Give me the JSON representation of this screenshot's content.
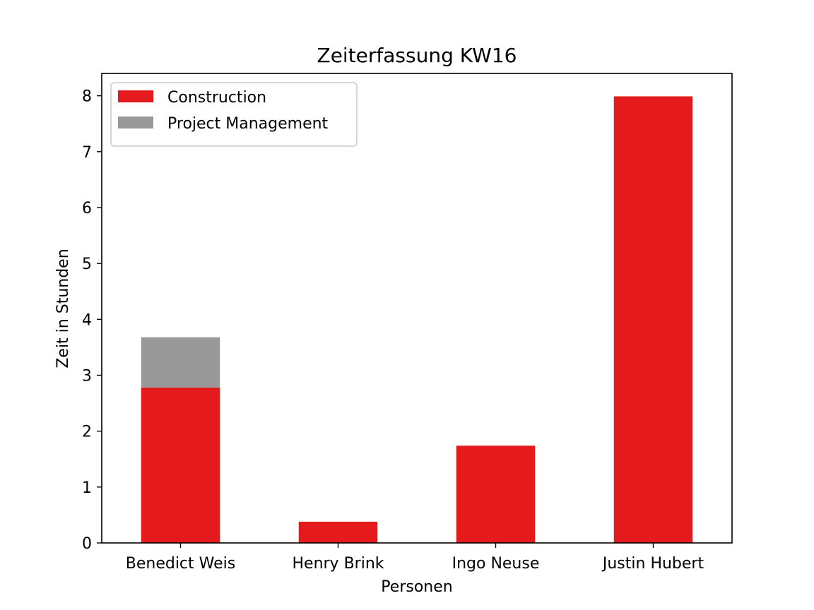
{
  "chart_data": {
    "type": "bar",
    "stacked": true,
    "title": "Zeiterfassung KW16",
    "xlabel": "Personen",
    "ylabel": "Zeit in Stunden",
    "categories": [
      "Benedict Weis",
      "Henry Brink",
      "Ingo Neuse",
      "Justin Hubert"
    ],
    "series": [
      {
        "name": "Construction",
        "color": "#e41a1c",
        "values": [
          2.78,
          0.38,
          1.74,
          7.99
        ]
      },
      {
        "name": "Project Management",
        "color": "#999999",
        "values": [
          0.9,
          0,
          0,
          0
        ]
      }
    ],
    "ylim": [
      0,
      8.4
    ],
    "yticks": [
      0,
      1,
      2,
      3,
      4,
      5,
      6,
      7,
      8
    ],
    "grid": false,
    "legend_position": "top-left"
  }
}
